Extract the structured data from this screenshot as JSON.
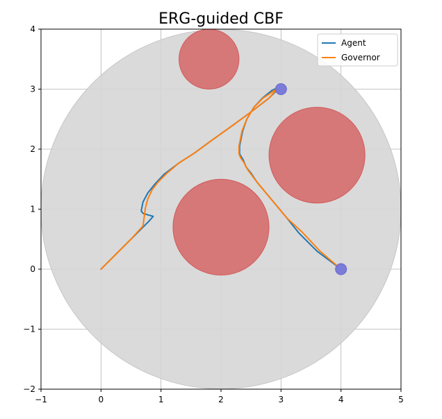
{
  "chart_data": {
    "type": "line",
    "title": "ERG-guided CBF",
    "xlabel": "",
    "ylabel": "",
    "xlim": [
      -1,
      5
    ],
    "ylim": [
      -2,
      4
    ],
    "xticks": [
      -1,
      0,
      1,
      2,
      3,
      4,
      5
    ],
    "yticks": [
      -2,
      -1,
      0,
      1,
      2,
      3,
      4
    ],
    "xtick_labels": [
      "−1",
      "0",
      "1",
      "2",
      "3",
      "4",
      "5"
    ],
    "ytick_labels": [
      "−2",
      "−1",
      "0",
      "1",
      "2",
      "3",
      "4"
    ],
    "grid": true,
    "legend_position": "top-right",
    "workspace": {
      "cx": 2,
      "cy": 1,
      "r": 3,
      "color": "#d6d6d6"
    },
    "obstacles": [
      {
        "cx": 1.8,
        "cy": 3.5,
        "r": 0.5,
        "color": "#d67878"
      },
      {
        "cx": 3.6,
        "cy": 1.9,
        "r": 0.8,
        "color": "#d67878"
      },
      {
        "cx": 2.0,
        "cy": 0.7,
        "r": 0.8,
        "color": "#d67878"
      }
    ],
    "goals": [
      {
        "x": 3.0,
        "y": 3.0,
        "color": "#7b7bd8"
      },
      {
        "x": 4.0,
        "y": 0.0,
        "color": "#7b7bd8"
      }
    ],
    "series": [
      {
        "name": "Agent",
        "color": "#1f77b4",
        "x": [
          4.0,
          3.6,
          3.3,
          3.1,
          2.85,
          2.6,
          2.5,
          2.42,
          2.37,
          2.34,
          2.31,
          2.31,
          2.36,
          2.43,
          2.55,
          2.7,
          2.85,
          3.0,
          2.95,
          2.8,
          2.5,
          2.2,
          1.85,
          1.55,
          1.3,
          1.05,
          0.9,
          0.78,
          0.7,
          0.67,
          0.7,
          0.8,
          0.87,
          0.8,
          0.7,
          0.5,
          0.25,
          0.0
        ],
        "y": [
          0.0,
          0.3,
          0.6,
          0.85,
          1.15,
          1.45,
          1.6,
          1.7,
          1.82,
          1.87,
          1.92,
          2.05,
          2.3,
          2.5,
          2.7,
          2.86,
          2.98,
          3.05,
          3.0,
          2.85,
          2.62,
          2.4,
          2.15,
          1.93,
          1.77,
          1.58,
          1.42,
          1.27,
          1.12,
          0.97,
          0.93,
          0.9,
          0.88,
          0.8,
          0.7,
          0.5,
          0.25,
          0.0
        ]
      },
      {
        "name": "Governor",
        "color": "#ff7f0e",
        "x": [
          4.0,
          3.65,
          3.35,
          3.1,
          2.85,
          2.6,
          2.45,
          2.38,
          2.33,
          2.3,
          2.3,
          2.35,
          2.43,
          2.55,
          2.7,
          2.85,
          2.95,
          2.8,
          2.5,
          2.2,
          1.85,
          1.55,
          1.3,
          1.1,
          0.95,
          0.85,
          0.78,
          0.74,
          0.72,
          0.7,
          0.5,
          0.25,
          0.0
        ],
        "y": [
          0.0,
          0.3,
          0.62,
          0.85,
          1.15,
          1.45,
          1.65,
          1.78,
          1.85,
          1.92,
          2.05,
          2.3,
          2.5,
          2.7,
          2.85,
          2.95,
          3.02,
          2.85,
          2.62,
          2.4,
          2.15,
          1.93,
          1.77,
          1.6,
          1.45,
          1.32,
          1.17,
          1.02,
          0.87,
          0.72,
          0.5,
          0.25,
          0.0
        ]
      }
    ]
  }
}
